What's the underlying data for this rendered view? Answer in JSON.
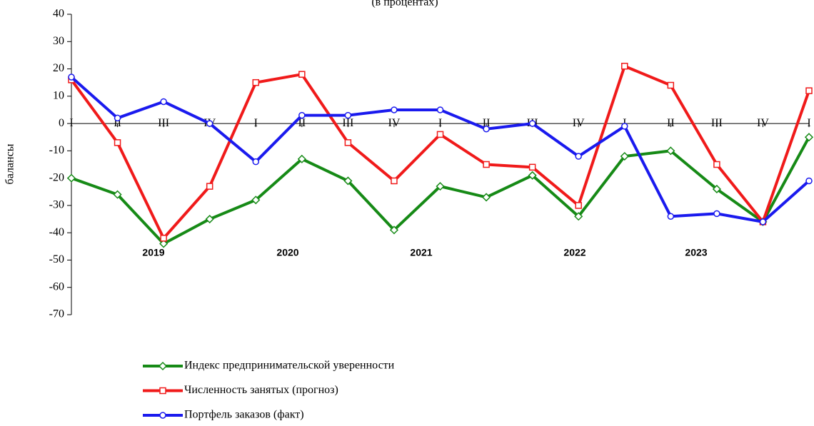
{
  "chart_data": {
    "type": "line",
    "subtitle": "(в процентах)",
    "ylabel": "балансы",
    "categories": [
      "I",
      "II",
      "III",
      "IV",
      "I",
      "II",
      "III",
      "IV",
      "I",
      "II",
      "III",
      "IV",
      "I",
      "II",
      "III",
      "IV",
      "I"
    ],
    "years": [
      "2019",
      "2020",
      "2021",
      "2022",
      "2023"
    ],
    "ylim": [
      -70,
      40
    ],
    "yticks": [
      -70,
      -60,
      -50,
      -40,
      -30,
      -20,
      -10,
      0,
      10,
      20,
      30,
      40
    ],
    "grid": false,
    "legend": "bottom",
    "series": [
      {
        "name": "Индекс предпринимательской уверенности",
        "color": "#168a16",
        "marker": "diamond",
        "values": [
          -20,
          -26,
          -44,
          -35,
          -28,
          -13,
          -21,
          -39,
          -23,
          -27,
          -19,
          -34,
          -12,
          -10,
          -24,
          -36,
          -5
        ]
      },
      {
        "name": "Численность занятых (прогноз)",
        "color": "#f01a1a",
        "marker": "square",
        "values": [
          16,
          -7,
          -42,
          -23,
          15,
          18,
          -7,
          -21,
          -4,
          -15,
          -16,
          -30,
          21,
          14,
          -15,
          -36,
          12
        ]
      },
      {
        "name": "Портфель заказов (факт)",
        "color": "#1a1aee",
        "marker": "circle",
        "values": [
          17,
          2,
          8,
          0,
          -14,
          3,
          3,
          5,
          5,
          -2,
          0,
          -12,
          -1,
          -34,
          -33,
          -36,
          -21
        ]
      }
    ]
  }
}
